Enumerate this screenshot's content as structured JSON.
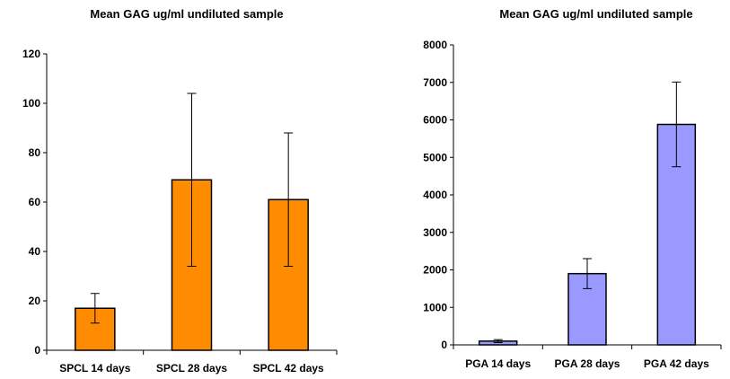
{
  "chart_data": [
    {
      "type": "bar",
      "title": "Mean GAG ug/ml undiluted sample",
      "xlabel": "",
      "ylabel": "",
      "categories": [
        "SPCL 14 days",
        "SPCL 28 days",
        "SPCL 42 days"
      ],
      "series": [
        {
          "values": [
            17,
            69,
            61
          ],
          "error": [
            6,
            35,
            27
          ]
        }
      ],
      "ylim": [
        0,
        120
      ],
      "yticks": [
        0,
        20,
        40,
        60,
        80,
        100,
        120
      ],
      "bar_color": "#ff8c00",
      "grid": false,
      "legend": "none"
    },
    {
      "type": "bar",
      "title": "Mean GAG ug/ml undiluted sample",
      "xlabel": "",
      "ylabel": "",
      "categories": [
        "PGA 14 days",
        "PGA 28 days",
        "PGA 42 days"
      ],
      "series": [
        {
          "values": [
            100,
            1900,
            5880
          ],
          "error": [
            40,
            400,
            1130
          ]
        }
      ],
      "ylim": [
        0,
        8000
      ],
      "yticks": [
        0,
        1000,
        2000,
        3000,
        4000,
        5000,
        6000,
        7000,
        8000
      ],
      "bar_color": "#9999ff",
      "grid": false,
      "legend": "none"
    }
  ]
}
